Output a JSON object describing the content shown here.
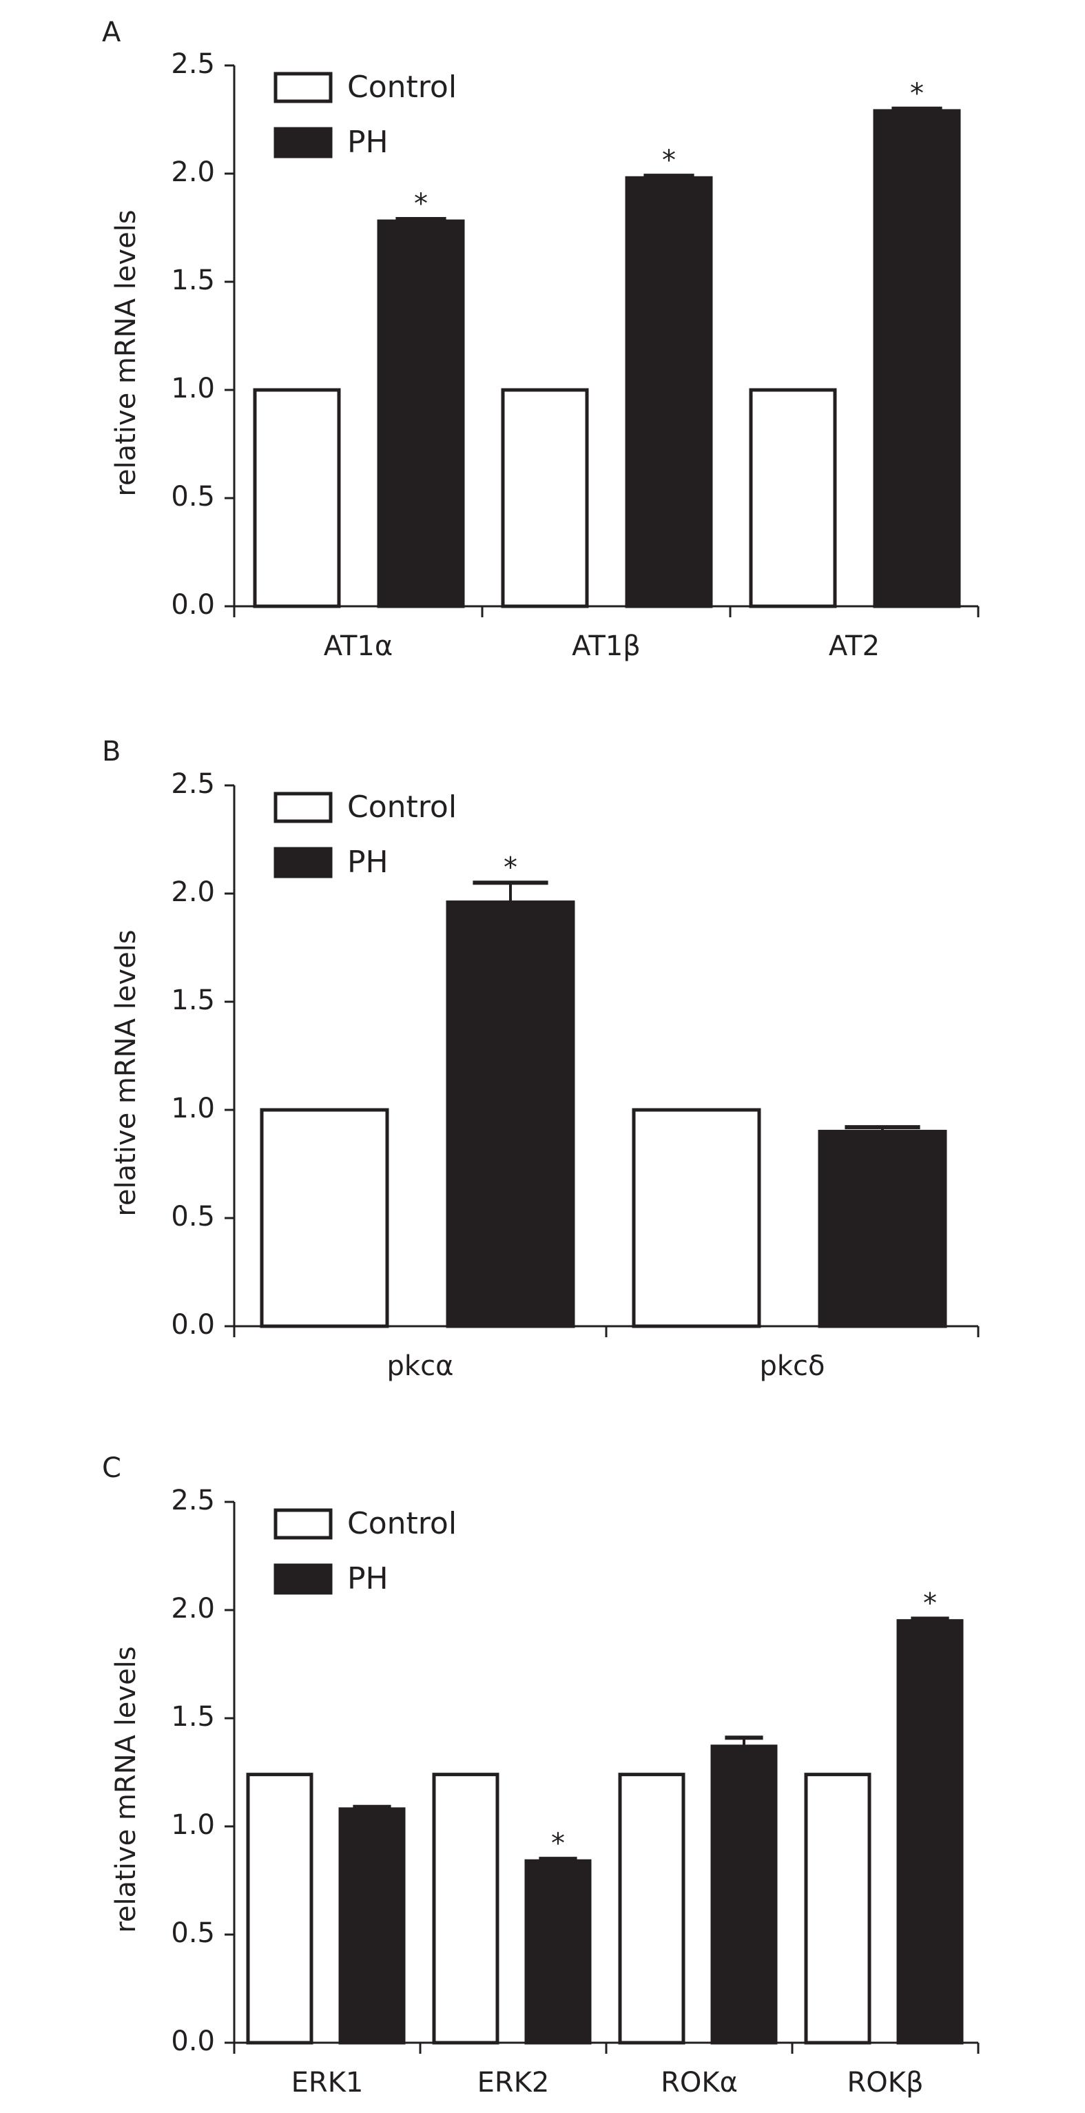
{
  "figure": {
    "colors": {
      "control": "#ffffff",
      "ph": "#231f20",
      "axis": "#231f20"
    }
  },
  "chart_data": [
    {
      "panel": "A",
      "type": "bar",
      "ylabel": "relative mRNA levels",
      "ylim": [
        0,
        2.5
      ],
      "yticks": [
        "0.0",
        "0.5",
        "1.0",
        "1.5",
        "2.0",
        "2.5"
      ],
      "legend": {
        "placement": "top-left",
        "entries": [
          "Control",
          "PH"
        ]
      },
      "categories": [
        "AT1α",
        "AT1β",
        "AT2"
      ],
      "series": [
        {
          "name": "Control",
          "values": [
            1.0,
            1.0,
            1.0
          ],
          "errors": [
            0,
            0,
            0
          ]
        },
        {
          "name": "PH",
          "values": [
            1.78,
            1.98,
            2.29
          ],
          "errors": [
            0.01,
            0.01,
            0.01
          ]
        }
      ],
      "annotations": [
        {
          "series": "PH",
          "category": "AT1α",
          "text": "*"
        },
        {
          "series": "PH",
          "category": "AT1β",
          "text": "*"
        },
        {
          "series": "PH",
          "category": "AT2",
          "text": "*"
        }
      ]
    },
    {
      "panel": "B",
      "type": "bar",
      "ylabel": "relative mRNA levels",
      "ylim": [
        0,
        2.5
      ],
      "yticks": [
        "0.0",
        "0.5",
        "1.0",
        "1.5",
        "2.0",
        "2.5"
      ],
      "legend": {
        "placement": "top-left",
        "entries": [
          "Control",
          "PH"
        ]
      },
      "categories": [
        "pkcα",
        "pkcδ"
      ],
      "series": [
        {
          "name": "Control",
          "values": [
            1.0,
            1.0
          ],
          "errors": [
            0,
            0
          ]
        },
        {
          "name": "PH",
          "values": [
            1.96,
            0.9
          ],
          "errors": [
            0.09,
            0.02
          ]
        }
      ],
      "annotations": [
        {
          "series": "PH",
          "category": "pkcα",
          "text": "*"
        }
      ]
    },
    {
      "panel": "C",
      "type": "bar",
      "ylabel": "relative mRNA levels",
      "ylim": [
        0,
        2.5
      ],
      "yticks": [
        "0.0",
        "0.5",
        "1.0",
        "1.5",
        "2.0",
        "2.5"
      ],
      "legend": {
        "placement": "top-left",
        "entries": [
          "Control",
          "PH"
        ]
      },
      "categories": [
        "ERK1",
        "ERK2",
        "ROKα",
        "ROKβ"
      ],
      "series": [
        {
          "name": "Control",
          "values": [
            1.24,
            1.24,
            1.24,
            1.24
          ],
          "errors": [
            0,
            0,
            0,
            0
          ]
        },
        {
          "name": "PH",
          "values": [
            1.08,
            0.84,
            1.37,
            1.95
          ],
          "errors": [
            0.01,
            0.01,
            0.04,
            0.01
          ]
        }
      ],
      "annotations": [
        {
          "series": "PH",
          "category": "ERK2",
          "text": "*"
        },
        {
          "series": "PH",
          "category": "ROKβ",
          "text": "*"
        }
      ]
    }
  ]
}
